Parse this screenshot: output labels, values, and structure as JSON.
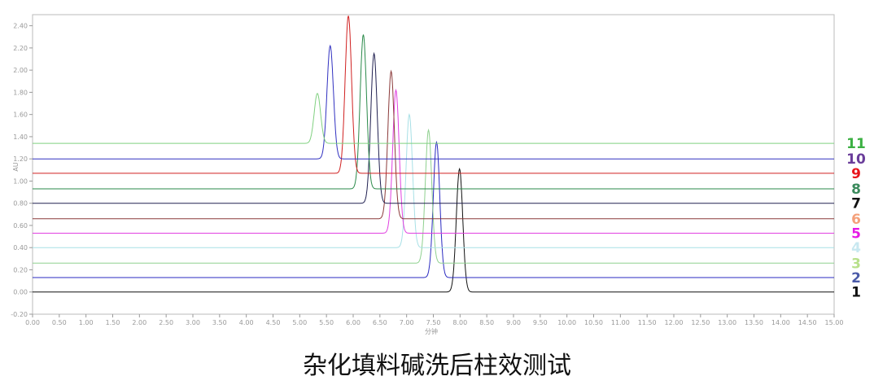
{
  "chart_data": {
    "type": "line",
    "title": "",
    "caption": "杂化填料碱洗后柱效测试",
    "xlabel": "分钟",
    "ylabel": "AU",
    "xlim": [
      0,
      15
    ],
    "ylim": [
      -0.2,
      2.5
    ],
    "xticks": [
      "0.00",
      "0.50",
      "1.00",
      "1.50",
      "2.00",
      "2.50",
      "3.00",
      "3.50",
      "4.00",
      "4.50",
      "5.00",
      "5.50",
      "6.00",
      "6.50",
      "7.00",
      "7.50",
      "8.00",
      "8.50",
      "9.00",
      "9.50",
      "10.00",
      "10.50",
      "11.00",
      "11.50",
      "12.00",
      "12.50",
      "13.00",
      "13.50",
      "14.00",
      "14.50",
      "15.00"
    ],
    "yticks": [
      "-0.20",
      "0.00",
      "0.20",
      "0.40",
      "0.60",
      "0.80",
      "1.00",
      "1.20",
      "1.40",
      "1.60",
      "1.80",
      "2.00",
      "2.20",
      "2.40"
    ],
    "grid": false,
    "legend": "right",
    "series": [
      {
        "name": "1",
        "color": "#111111",
        "label_color": "#111111",
        "baseline": 0.0,
        "peak_time": 7.99,
        "peak_height": 1.11
      },
      {
        "name": "2",
        "color": "#2a2ac0",
        "label_color": "#4a5aa8",
        "baseline": 0.13,
        "peak_time": 7.56,
        "peak_height": 1.35
      },
      {
        "name": "3",
        "color": "#8fd08f",
        "label_color": "#b8e08a",
        "baseline": 0.26,
        "peak_time": 7.41,
        "peak_height": 1.46
      },
      {
        "name": "4",
        "color": "#a8e0e6",
        "label_color": "#c8e8f0",
        "baseline": 0.4,
        "peak_time": 7.05,
        "peak_height": 1.6
      },
      {
        "name": "5",
        "color": "#e040e0",
        "label_color": "#e619e6",
        "baseline": 0.53,
        "peak_time": 6.8,
        "peak_height": 1.82
      },
      {
        "name": "6",
        "color": "#8b3a3a",
        "label_color": "#f4a07a",
        "baseline": 0.66,
        "peak_time": 6.71,
        "peak_height": 1.99
      },
      {
        "name": "7",
        "color": "#202050",
        "label_color": "#111111",
        "baseline": 0.8,
        "peak_time": 6.39,
        "peak_height": 2.15
      },
      {
        "name": "8",
        "color": "#2a8a4a",
        "label_color": "#3a8a5c",
        "baseline": 0.93,
        "peak_time": 6.19,
        "peak_height": 2.32
      },
      {
        "name": "9",
        "color": "#d02020",
        "label_color": "#e8141b",
        "baseline": 1.07,
        "peak_time": 5.91,
        "peak_height": 2.49
      },
      {
        "name": "10",
        "color": "#3030c0",
        "label_color": "#6a3d9a",
        "baseline": 1.2,
        "peak_time": 5.57,
        "peak_height": 2.22
      },
      {
        "name": "11",
        "color": "#80d080",
        "label_color": "#3cb043",
        "baseline": 1.34,
        "peak_time": 5.33,
        "peak_height": 1.79
      }
    ]
  }
}
